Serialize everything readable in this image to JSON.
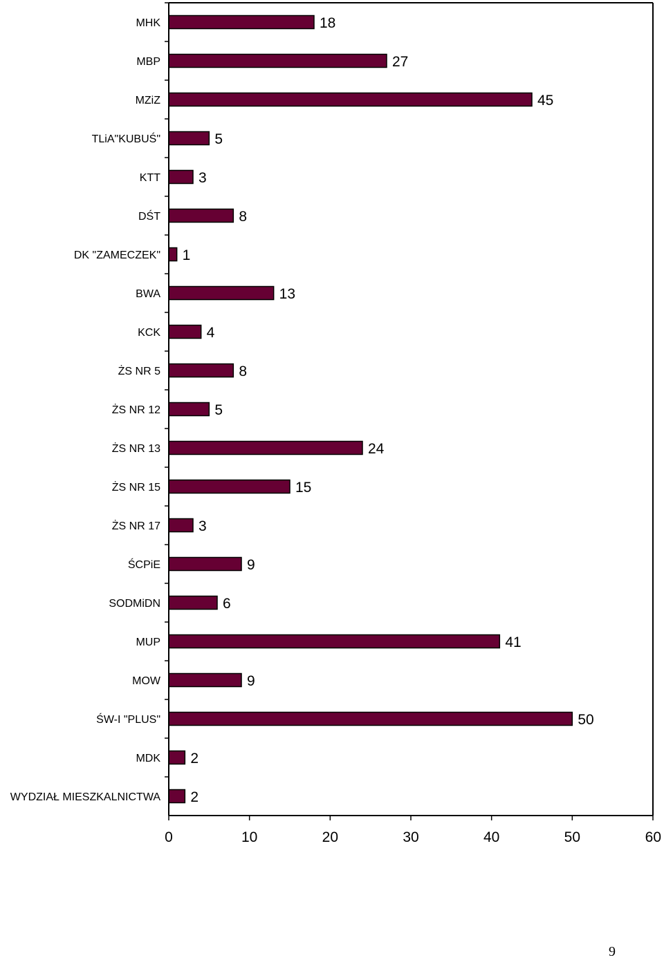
{
  "chart_data": {
    "type": "bar",
    "orientation": "horizontal",
    "categories": [
      "MHK",
      "MBP",
      "MZiZ",
      "TLiA\"KUBUŚ\"",
      "KTT",
      "DŚT",
      "DK \"ZAMECZEK\"",
      "BWA",
      "KCK",
      "ŻS NR 5",
      "ŻS NR 12",
      "ŻS NR 13",
      "ŻS NR 15",
      "ŻS NR 17",
      "ŚCPiE",
      "SODMiDN",
      "MUP",
      "MOW",
      "ŚW-I \"PLUS\"",
      "MDK",
      "WYDZIAŁ MIESZKALNICTWA"
    ],
    "values": [
      18,
      27,
      45,
      5,
      3,
      8,
      1,
      13,
      4,
      8,
      5,
      24,
      15,
      3,
      9,
      6,
      41,
      9,
      50,
      2,
      2
    ],
    "xlim": [
      0,
      60
    ],
    "xticks": [
      0,
      10,
      20,
      30,
      40,
      50,
      60
    ],
    "bar_color": "#660033",
    "grid": false,
    "data_labels": true
  },
  "page_number": "9"
}
